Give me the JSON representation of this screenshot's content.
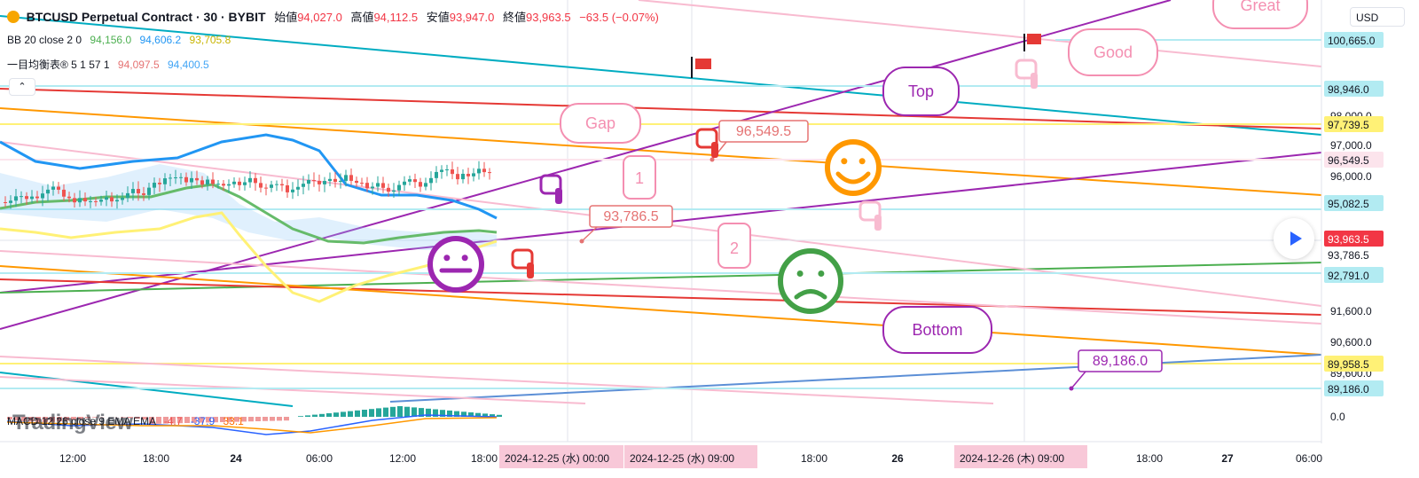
{
  "header": {
    "symbol": "BTCUSD Perpetual Contract · 30 · BYBIT",
    "open_label": "始値",
    "open": "94,027.0",
    "high_label": "高値",
    "high": "94,112.5",
    "low_label": "安値",
    "low": "93,947.0",
    "close_label": "終値",
    "close": "93,963.5",
    "change": "−63.5 (−0.07%)"
  },
  "indicators": {
    "bb": {
      "label": "BB 20 close 2 0",
      "v1": "94,156.0",
      "v2": "94,606.2",
      "v3": "93,705.8"
    },
    "ichimoku": {
      "label": "一目均衡表® 5 1 57 1",
      "v1": "94,097.5",
      "v2": "94,400.5"
    },
    "macd": {
      "label": "MACD 12 26 close 9 EMA EMA",
      "v1": "-4.7",
      "v2": "-37.9",
      "v3": "33.1"
    }
  },
  "collapse_icon": "chevron-up-icon",
  "currency": "USD",
  "watermark": "TradingView",
  "colors": {
    "up": "#26a69a",
    "down": "#ef5350",
    "bb_upper": "#2196f3",
    "bb_mid": "#4caf50",
    "bb_lower": "#ffeb3b",
    "purple": "#9c27b0",
    "red": "#e53935",
    "orange": "#ff9800",
    "cyan": "#00acc1",
    "pink": "#f8bbd0",
    "yellow": "#fff176"
  },
  "chart_data": {
    "type": "candlestick",
    "y_axis_ticks": [
      "98,000.0",
      "97,000.0",
      "96,000.0",
      "91,600.0",
      "90,600.0",
      "89,600.0",
      "0.0"
    ],
    "price_tags": [
      {
        "label": "100,665.0",
        "color": "#b2ebf2",
        "text": "#131722"
      },
      {
        "label": "98,946.0",
        "color": "#b2ebf2",
        "text": "#131722"
      },
      {
        "label": "97,739.5",
        "color": "#fff176",
        "text": "#131722"
      },
      {
        "label": "96,549.5",
        "color": "#fce4ec",
        "text": "#131722"
      },
      {
        "label": "95,082.5",
        "color": "#b2ebf2",
        "text": "#131722"
      },
      {
        "label": "93,963.5",
        "color": "#f23645",
        "text": "#ffffff"
      },
      {
        "label": "93,786.5",
        "color": "#ffffff",
        "text": "#131722"
      },
      {
        "label": "92,791.0",
        "color": "#b2ebf2",
        "text": "#131722"
      },
      {
        "label": "89,958.5",
        "color": "#fff176",
        "text": "#131722"
      },
      {
        "label": "89,186.0",
        "color": "#b2ebf2",
        "text": "#131722"
      }
    ],
    "x_axis_ticks": [
      "12:00",
      "18:00",
      "24",
      "06:00",
      "12:00",
      "18:00",
      "18:00",
      "26",
      "18:00",
      "27",
      "06:00"
    ],
    "x_axis_highlights": [
      "2024-12-25 (水)  00:00",
      "2024-12-25 (水)  09:00",
      "2024-12-26 (木)  09:00"
    ],
    "annotations": {
      "callouts": [
        "Gap",
        "Good",
        "Top",
        "Bottom",
        "Great"
      ],
      "numbered": [
        "1",
        "2"
      ],
      "price_labels": [
        "93,786.5",
        "96,549.5",
        "89,186.0"
      ]
    },
    "last_price": 93963.5
  }
}
